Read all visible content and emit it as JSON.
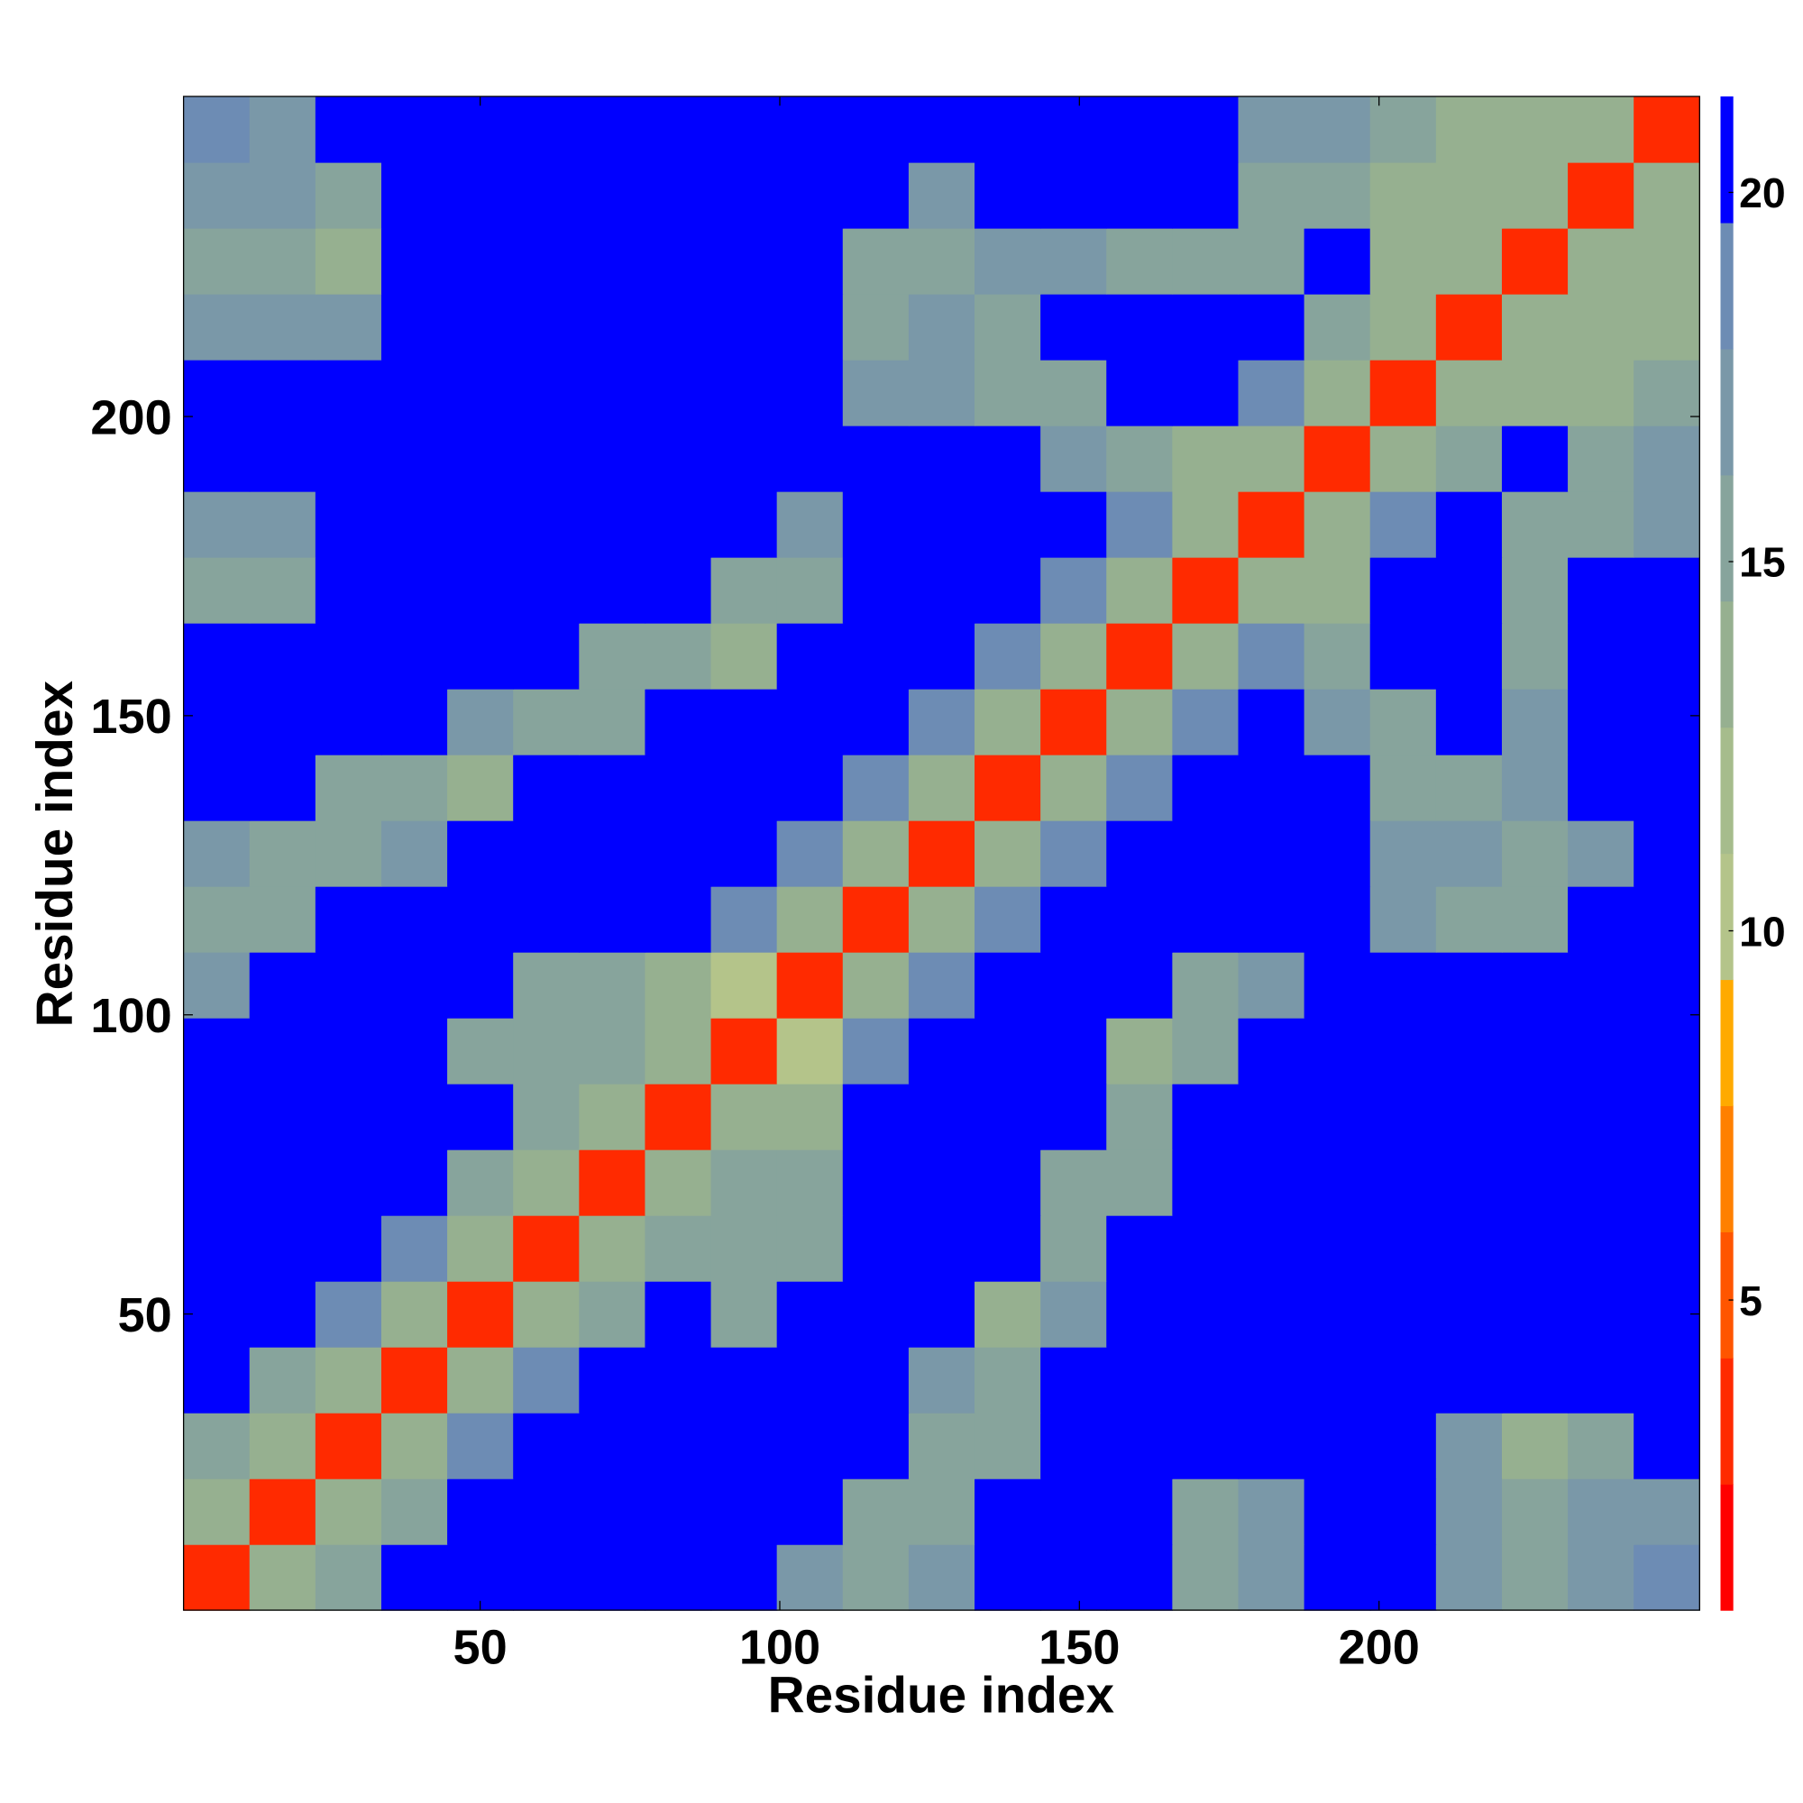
{
  "chart_data": {
    "type": "heatmap",
    "xlabel": "Residue index",
    "ylabel": "Residue index",
    "xlim": [
      0.5,
      253.5
    ],
    "ylim": [
      0.5,
      253.5
    ],
    "xticks": [
      50,
      100,
      150,
      200
    ],
    "yticks": [
      50,
      100,
      150,
      200
    ],
    "xbins": [
      0.5,
      11.5,
      22.5,
      33.5,
      44.5,
      55.5,
      66.5,
      77.5,
      88.5,
      99.5,
      110.5,
      121.5,
      132.5,
      143.5,
      154.5,
      165.5,
      176.5,
      187.5,
      198.5,
      209.5,
      220.5,
      231.5,
      242.5,
      253.5
    ],
    "ybins": [
      0.5,
      11.5,
      22.5,
      33.5,
      44.5,
      55.5,
      66.5,
      77.5,
      88.5,
      99.5,
      110.5,
      121.5,
      132.5,
      143.5,
      154.5,
      165.5,
      176.5,
      187.5,
      198.5,
      209.5,
      220.5,
      231.5,
      242.5,
      253.5
    ],
    "values": [
      [
        3,
        13,
        15,
        22,
        22,
        22,
        22,
        22,
        22,
        17,
        15,
        17,
        22,
        22,
        22,
        16,
        17,
        22,
        22,
        17,
        16,
        17,
        18
      ],
      [
        13,
        3,
        13,
        15,
        22,
        22,
        22,
        22,
        22,
        22,
        16,
        15,
        22,
        22,
        22,
        16,
        17,
        22,
        22,
        17,
        15,
        17,
        17
      ],
      [
        15,
        13,
        3,
        13,
        19,
        22,
        22,
        22,
        22,
        22,
        22,
        15,
        16,
        22,
        22,
        22,
        22,
        22,
        22,
        17,
        14,
        16,
        22
      ],
      [
        22,
        15,
        13,
        3,
        13,
        19,
        22,
        22,
        22,
        22,
        22,
        17,
        15,
        22,
        22,
        22,
        22,
        22,
        22,
        22,
        22,
        22,
        22
      ],
      [
        22,
        22,
        19,
        13,
        3,
        13,
        15,
        22,
        16,
        22,
        22,
        22,
        14,
        17,
        22,
        22,
        22,
        22,
        22,
        22,
        22,
        22,
        22
      ],
      [
        22,
        22,
        22,
        19,
        13,
        3,
        13,
        15,
        15,
        16,
        22,
        22,
        22,
        15,
        22,
        22,
        22,
        22,
        22,
        22,
        22,
        22,
        22
      ],
      [
        22,
        22,
        22,
        22,
        15,
        13,
        3,
        13,
        15,
        16,
        22,
        22,
        22,
        16,
        15,
        22,
        22,
        22,
        22,
        22,
        22,
        22,
        22
      ],
      [
        22,
        22,
        22,
        22,
        22,
        15,
        13,
        3,
        13,
        14,
        22,
        22,
        22,
        22,
        16,
        22,
        22,
        22,
        22,
        22,
        22,
        22,
        22
      ],
      [
        22,
        22,
        22,
        22,
        16,
        15,
        15,
        13,
        3,
        11,
        19,
        22,
        22,
        22,
        14,
        16,
        22,
        22,
        22,
        22,
        22,
        22,
        22
      ],
      [
        17,
        22,
        22,
        22,
        22,
        16,
        16,
        14,
        11,
        3,
        13,
        19,
        22,
        22,
        22,
        15,
        17,
        22,
        20,
        22,
        22,
        22,
        22
      ],
      [
        15,
        16,
        22,
        22,
        22,
        22,
        22,
        22,
        19,
        13,
        3,
        13,
        19,
        22,
        22,
        22,
        22,
        22,
        17,
        16,
        15,
        22,
        22
      ],
      [
        17,
        15,
        15,
        17,
        22,
        22,
        22,
        22,
        22,
        19,
        13,
        3,
        13,
        19,
        22,
        22,
        22,
        22,
        17,
        17,
        16,
        17,
        22
      ],
      [
        22,
        22,
        16,
        15,
        14,
        22,
        22,
        22,
        22,
        22,
        19,
        13,
        3,
        13,
        19,
        22,
        22,
        22,
        16,
        15,
        17,
        22,
        22
      ],
      [
        22,
        22,
        22,
        22,
        17,
        15,
        16,
        22,
        22,
        22,
        22,
        19,
        13,
        3,
        13,
        19,
        22,
        17,
        15,
        22,
        17,
        22,
        22
      ],
      [
        22,
        22,
        22,
        22,
        22,
        22,
        15,
        16,
        14,
        22,
        22,
        22,
        19,
        13,
        3,
        13,
        19,
        16,
        22,
        22,
        16,
        22,
        22
      ],
      [
        16,
        16,
        22,
        22,
        22,
        22,
        22,
        22,
        16,
        15,
        22,
        22,
        22,
        19,
        13,
        3,
        13,
        14,
        22,
        22,
        15,
        22,
        22
      ],
      [
        17,
        17,
        22,
        22,
        22,
        22,
        22,
        22,
        22,
        17,
        22,
        22,
        22,
        22,
        19,
        13,
        3,
        13,
        19,
        22,
        15,
        16,
        17
      ],
      [
        22,
        22,
        22,
        22,
        22,
        22,
        22,
        22,
        22,
        22,
        22,
        22,
        22,
        17,
        16,
        14,
        13,
        3,
        13,
        16,
        22,
        15,
        17
      ],
      [
        22,
        22,
        22,
        22,
        22,
        22,
        22,
        22,
        22,
        20,
        17,
        17,
        16,
        15,
        22,
        22,
        19,
        13,
        3,
        13,
        14,
        14,
        15
      ],
      [
        17,
        17,
        17,
        22,
        22,
        22,
        22,
        22,
        22,
        22,
        16,
        17,
        15,
        22,
        22,
        22,
        22,
        16,
        13,
        3,
        13,
        13,
        14
      ],
      [
        16,
        15,
        14,
        22,
        22,
        22,
        22,
        22,
        22,
        22,
        15,
        16,
        17,
        17,
        16,
        15,
        15,
        22,
        14,
        13,
        3,
        13,
        13
      ],
      [
        17,
        17,
        16,
        22,
        22,
        22,
        22,
        22,
        22,
        22,
        22,
        17,
        22,
        22,
        22,
        22,
        16,
        15,
        14,
        13,
        13,
        3,
        13
      ],
      [
        18,
        17,
        22,
        22,
        22,
        22,
        22,
        22,
        22,
        22,
        22,
        22,
        22,
        22,
        22,
        22,
        17,
        17,
        15,
        14,
        13,
        13,
        3
      ]
    ],
    "clim": [
      0.8,
      21.3
    ],
    "cticks": [
      5,
      10,
      15,
      20
    ],
    "colors": [
      "#ff0000",
      "#ff2a00",
      "#ff5500",
      "#ff8000",
      "#ffaa00",
      "#b4c48a",
      "#a6bc8c",
      "#96b090",
      "#87a49c",
      "#7a98a8",
      "#6d8cb4",
      "#0000ff"
    ]
  }
}
